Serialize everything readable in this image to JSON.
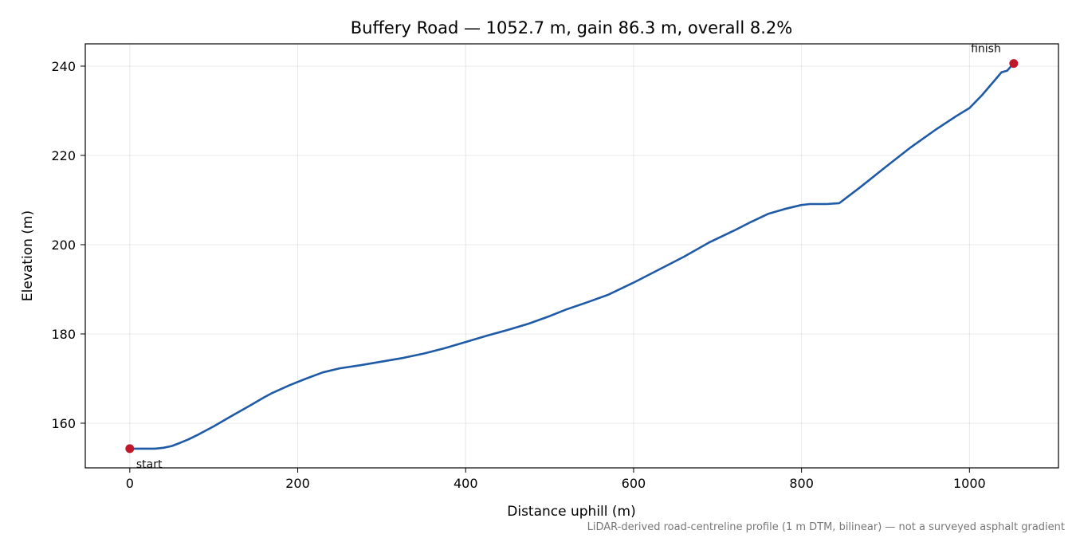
{
  "chart_data": {
    "type": "line",
    "title": "Buffery Road — 1052.7 m, gain 86.3 m, overall 8.2%",
    "xlabel": "Distance uphill (m)",
    "ylabel": "Elevation (m)",
    "xlim": [
      -53,
      1106
    ],
    "ylim": [
      150,
      245
    ],
    "xticks": [
      0,
      200,
      400,
      600,
      800,
      1000
    ],
    "yticks": [
      160,
      180,
      200,
      220,
      240
    ],
    "grid": true,
    "series": [
      {
        "color": "#1f5aa6",
        "x": [
          0,
          10,
          20,
          30,
          40,
          50,
          60,
          70,
          80,
          90,
          100,
          120,
          140,
          160,
          170,
          190,
          210,
          230,
          250,
          275,
          300,
          325,
          350,
          375,
          400,
          425,
          450,
          475,
          500,
          520,
          545,
          570,
          600,
          630,
          660,
          690,
          720,
          740,
          760,
          780,
          800,
          810,
          830,
          845,
          870,
          900,
          930,
          960,
          985,
          1000,
          1015,
          1030,
          1038,
          1045,
          1052.7
        ],
        "y": [
          154.3,
          154.3,
          154.3,
          154.3,
          154.5,
          154.9,
          155.6,
          156.4,
          157.3,
          158.3,
          159.3,
          161.5,
          163.6,
          165.8,
          166.8,
          168.5,
          170.0,
          171.4,
          172.3,
          173.0,
          173.8,
          174.6,
          175.6,
          176.8,
          178.2,
          179.6,
          180.9,
          182.3,
          184.0,
          185.5,
          187.1,
          188.8,
          191.5,
          194.4,
          197.3,
          200.5,
          203.2,
          205.1,
          206.9,
          208.0,
          208.9,
          209.1,
          209.1,
          209.3,
          212.9,
          217.4,
          221.8,
          225.8,
          228.9,
          230.6,
          233.5,
          236.8,
          238.6,
          239.0,
          240.6
        ]
      }
    ],
    "markers": [
      {
        "x": 0,
        "y": 154.3,
        "label": "start",
        "color": "#c0182b"
      },
      {
        "x": 1052.7,
        "y": 240.6,
        "label": "finish",
        "color": "#c0182b"
      }
    ]
  },
  "footnote": "LiDAR-derived road-centreline profile (1 m DTM, bilinear) — not a surveyed asphalt gradient"
}
